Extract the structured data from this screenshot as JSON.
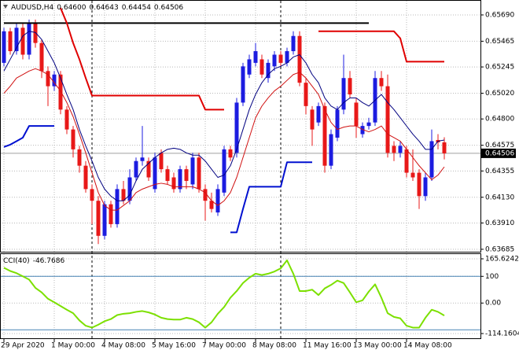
{
  "chart_data": {
    "type": "candlestick",
    "symbol": "AUDUSD,H4",
    "header_values": [
      "0.64600",
      "0.64643",
      "0.64454",
      "0.64506"
    ],
    "categories": [
      "29 Apr 2020",
      null,
      null,
      null,
      null,
      null,
      null,
      null,
      "1 May 00:00",
      null,
      null,
      null,
      null,
      null,
      null,
      null,
      "4 May 08:00",
      null,
      null,
      null,
      null,
      null,
      null,
      null,
      "5 May 16:00",
      null,
      null,
      null,
      null,
      null,
      null,
      null,
      "7 May 00:00",
      null,
      null,
      null,
      null,
      null,
      null,
      null,
      "8 May 08:00",
      null,
      null,
      null,
      null,
      null,
      null,
      null,
      "11 May 16:00",
      null,
      null,
      null,
      null,
      null,
      null,
      null,
      "13 May 00:00",
      null,
      null,
      null,
      null,
      null,
      null,
      null,
      "14 May 08:00",
      null,
      null,
      null,
      null,
      null,
      null
    ],
    "open": [
      0.6528,
      0.6555,
      0.6538,
      0.6558,
      0.6535,
      0.6562,
      0.6545,
      0.6521,
      0.6508,
      0.6518,
      0.6488,
      0.6471,
      0.6454,
      0.644,
      0.642,
      0.641,
      0.638,
      0.6407,
      0.639,
      0.642,
      0.641,
      0.643,
      0.6444,
      0.6444,
      0.642,
      0.6451,
      0.6437,
      0.643,
      0.642,
      0.6437,
      0.6424,
      0.6447,
      0.642,
      0.641,
      0.64,
      0.6417,
      0.6454,
      0.6451,
      0.6494,
      0.6518,
      0.6528,
      0.6531,
      0.6515,
      0.6525,
      0.6535,
      0.6528,
      0.6538,
      0.6551,
      0.6511,
      0.6488,
      0.6477,
      0.6491,
      0.644,
      0.6464,
      0.6488,
      0.6515,
      0.6494,
      0.6467,
      0.6474,
      0.6477,
      0.6515,
      0.6508,
      0.6457,
      0.6451,
      0.6454,
      0.6434,
      0.6434,
      0.6414,
      0.643,
      0.6462,
      0.646
    ],
    "high": [
      0.6558,
      0.6558,
      0.6562,
      0.6562,
      0.6565,
      0.6565,
      0.6548,
      0.6525,
      0.6521,
      0.6521,
      0.6491,
      0.6474,
      0.6457,
      0.6444,
      0.6424,
      0.6414,
      0.641,
      0.641,
      0.6424,
      0.6427,
      0.6437,
      0.6447,
      0.6474,
      0.6447,
      0.6451,
      0.6454,
      0.644,
      0.6434,
      0.644,
      0.644,
      0.6451,
      0.6451,
      0.6424,
      0.6417,
      0.6424,
      0.6457,
      0.6457,
      0.6498,
      0.6528,
      0.6535,
      0.6545,
      0.6535,
      0.6531,
      0.6538,
      0.6538,
      0.6541,
      0.6555,
      0.6555,
      0.6515,
      0.6491,
      0.6494,
      0.6494,
      0.6471,
      0.6491,
      0.6535,
      0.6521,
      0.6498,
      0.6477,
      0.6481,
      0.6521,
      0.6521,
      0.6518,
      0.6461,
      0.6461,
      0.6457,
      0.6454,
      0.6437,
      0.6434,
      0.6471,
      0.6467,
      0.64643
    ],
    "low": [
      0.6525,
      0.6535,
      0.6535,
      0.6531,
      0.6531,
      0.6541,
      0.6515,
      0.6491,
      0.6504,
      0.6484,
      0.6467,
      0.6447,
      0.6434,
      0.6417,
      0.639,
      0.6373,
      0.6377,
      0.6387,
      0.6387,
      0.6407,
      0.6407,
      0.6427,
      0.644,
      0.6427,
      0.6417,
      0.6434,
      0.6424,
      0.6417,
      0.6417,
      0.642,
      0.642,
      0.6417,
      0.6393,
      0.64,
      0.6397,
      0.6414,
      0.6444,
      0.6447,
      0.6491,
      0.6515,
      0.6525,
      0.6515,
      0.6511,
      0.6521,
      0.6525,
      0.6525,
      0.6535,
      0.6508,
      0.6484,
      0.6457,
      0.6474,
      0.6434,
      0.6437,
      0.6461,
      0.6484,
      0.6498,
      0.6464,
      0.6464,
      0.6471,
      0.6474,
      0.6504,
      0.6447,
      0.6444,
      0.6447,
      0.643,
      0.6427,
      0.6403,
      0.641,
      0.6427,
      0.6454,
      0.64454
    ],
    "close": [
      0.6555,
      0.6538,
      0.6558,
      0.6535,
      0.6562,
      0.6545,
      0.6521,
      0.6508,
      0.6518,
      0.6488,
      0.6471,
      0.6454,
      0.644,
      0.642,
      0.641,
      0.638,
      0.6407,
      0.639,
      0.642,
      0.641,
      0.643,
      0.6444,
      0.6447,
      0.643,
      0.6447,
      0.6437,
      0.6427,
      0.642,
      0.6437,
      0.6427,
      0.6447,
      0.642,
      0.641,
      0.6403,
      0.642,
      0.6454,
      0.6447,
      0.6494,
      0.6525,
      0.6531,
      0.6538,
      0.6518,
      0.6528,
      0.6535,
      0.6528,
      0.6538,
      0.6551,
      0.6511,
      0.6491,
      0.6471,
      0.6491,
      0.644,
      0.6467,
      0.6488,
      0.6515,
      0.6501,
      0.6474,
      0.6474,
      0.6477,
      0.6515,
      0.6508,
      0.6451,
      0.6451,
      0.6457,
      0.6434,
      0.643,
      0.6414,
      0.643,
      0.6461,
      0.646,
      0.64506
    ],
    "up_color": "#1c1ce0",
    "down_color": "#e81818",
    "series": [
      {
        "color": "#000080",
        "width": 1,
        "values": [
          0.6521,
          0.6531,
          0.6541,
          0.6551,
          0.6555,
          0.6554,
          0.6548,
          0.6538,
          0.6528,
          0.6515,
          0.6501,
          0.6488,
          0.6471,
          0.6457,
          0.6444,
          0.643,
          0.642,
          0.6414,
          0.641,
          0.641,
          0.6415,
          0.6427,
          0.6437,
          0.6442,
          0.6447,
          0.6451,
          0.6454,
          0.6455,
          0.6454,
          0.6451,
          0.6449,
          0.6449,
          0.6444,
          0.6437,
          0.643,
          0.6432,
          0.644,
          0.6454,
          0.6471,
          0.6488,
          0.6501,
          0.6511,
          0.6518,
          0.6523,
          0.6525,
          0.6528,
          0.6533,
          0.6535,
          0.6528,
          0.6518,
          0.6511,
          0.6498,
          0.6491,
          0.6488,
          0.6494,
          0.6498,
          0.6498,
          0.6494,
          0.6491,
          0.6496,
          0.6501,
          0.6494,
          0.6488,
          0.6481,
          0.6474,
          0.6467,
          0.6461,
          0.6454,
          0.6454,
          0.6461,
          0.6462
        ]
      },
      {
        "color": "#d01010",
        "width": 1,
        "values": [
          0.6502,
          0.6508,
          0.6515,
          0.6518,
          0.6521,
          0.6523,
          0.6521,
          0.6518,
          0.6511,
          0.6504,
          0.6494,
          0.6482,
          0.6467,
          0.6451,
          0.6434,
          0.6417,
          0.6406,
          0.6402,
          0.6402,
          0.6406,
          0.641,
          0.6417,
          0.642,
          0.6422,
          0.6424,
          0.6425,
          0.6424,
          0.6422,
          0.6422,
          0.6422,
          0.6422,
          0.642,
          0.6417,
          0.641,
          0.6406,
          0.641,
          0.6417,
          0.643,
          0.6447,
          0.6464,
          0.6481,
          0.6491,
          0.6498,
          0.6504,
          0.6508,
          0.6513,
          0.6518,
          0.652,
          0.6515,
          0.6508,
          0.6501,
          0.6488,
          0.6477,
          0.6471,
          0.6473,
          0.6474,
          0.6474,
          0.6471,
          0.6469,
          0.6471,
          0.6474,
          0.6467,
          0.6464,
          0.6461,
          0.6454,
          0.6447,
          0.644,
          0.6434,
          0.6428,
          0.6432,
          0.6439
        ]
      },
      {
        "color": "#000000",
        "width": 2,
        "values": [
          0.6562,
          0.6562,
          0.6562,
          0.6562,
          0.6562,
          0.6562,
          0.6562,
          0.6562,
          0.6562,
          0.6562,
          0.6562,
          0.6562,
          0.6562,
          0.6562,
          0.6562,
          0.6562,
          0.6562,
          0.6562,
          0.6562,
          0.6562,
          0.6562,
          0.6562,
          0.6562,
          0.6562,
          0.6562,
          0.6562,
          0.6562,
          0.6562,
          0.6562,
          0.6562,
          0.6562,
          0.6562,
          0.6562,
          0.6562,
          0.6562,
          0.6562,
          0.6562,
          0.6562,
          0.6562,
          0.6562,
          0.6562,
          0.6562,
          0.6562,
          0.6562,
          0.6562,
          0.6562,
          0.6562,
          0.6562,
          0.6562,
          0.6562,
          0.6562,
          0.6562,
          0.6562,
          0.6562,
          0.6562,
          0.6562,
          0.6562,
          0.6562,
          0.6562,
          null,
          null,
          null,
          null,
          null,
          null,
          null,
          null,
          null,
          null,
          null,
          null
        ]
      },
      {
        "color": "#e00000",
        "width": 2,
        "values": [
          null,
          null,
          null,
          null,
          null,
          null,
          null,
          null,
          null,
          0.6575,
          0.6562,
          0.6545,
          0.6531,
          0.6515,
          0.65,
          0.65,
          0.65,
          0.65,
          0.65,
          0.65,
          0.65,
          0.65,
          0.65,
          0.65,
          0.65,
          0.65,
          0.65,
          0.65,
          0.65,
          0.65,
          0.65,
          0.65,
          0.6488,
          0.6488,
          0.6488,
          0.6488,
          null,
          null,
          null,
          null,
          null,
          null,
          null,
          null,
          null,
          null,
          null,
          null,
          null,
          null,
          0.6555,
          0.6555,
          0.6555,
          0.6555,
          0.6555,
          0.6555,
          0.6555,
          0.6555,
          0.6555,
          0.6555,
          0.6555,
          0.6555,
          0.6555,
          0.6549,
          0.6529,
          0.6529,
          0.6529,
          0.6529,
          0.6529,
          0.6529,
          0.6529
        ]
      },
      {
        "color": "#0010d0",
        "width": 2,
        "values": [
          0.6456,
          0.6458,
          0.6461,
          0.6464,
          0.6474,
          0.6474,
          0.6474,
          0.6474,
          0.6474,
          null,
          null,
          null,
          null,
          null,
          null,
          null,
          null,
          null,
          null,
          null,
          null,
          null,
          null,
          null,
          null,
          null,
          null,
          null,
          null,
          null,
          null,
          null,
          null,
          null,
          null,
          null,
          0.6383,
          0.6383,
          0.6403,
          0.6422,
          0.6422,
          0.6422,
          0.6422,
          0.6422,
          0.6422,
          0.6443,
          0.6443,
          0.6443,
          0.6443,
          0.6443,
          null,
          null,
          null,
          null,
          null,
          null,
          null,
          null,
          null,
          null,
          null,
          null,
          null,
          null,
          null,
          null,
          null,
          null,
          null,
          null,
          null
        ]
      }
    ],
    "ylim": [
      0.63664,
      0.65811
    ],
    "yticks": [
      {
        "value": 0.6569,
        "label": "0.65690"
      },
      0.65465,
      0.65245,
      {
        "value": 0.6502,
        "label": "0.65020"
      },
      {
        "value": 0.648,
        "label": "0.64800"
      },
      0.64575,
      0.64355,
      {
        "value": 0.6413,
        "label": "0.64130"
      },
      {
        "value": 0.6391,
        "label": "0.63910"
      },
      0.63685
    ],
    "grid": true,
    "indicator": {
      "type": "line",
      "name": "CCI(40)",
      "color": "#7ce000",
      "values": [
        132,
        120,
        112,
        100,
        88,
        57,
        40,
        16,
        3,
        -11,
        -25,
        -38,
        -65,
        -85,
        -92,
        -81,
        -68,
        -60,
        -45,
        -40,
        -38,
        -33,
        -30,
        -35,
        -43,
        -55,
        -60,
        -62,
        -62,
        -55,
        -60,
        -72,
        -92,
        -72,
        -40,
        -15,
        20,
        45,
        75,
        95,
        110,
        105,
        110,
        118,
        130,
        160,
        110,
        45,
        45,
        50,
        30,
        55,
        68,
        84,
        75,
        40,
        3,
        10,
        43,
        70,
        20,
        -38,
        -52,
        -57,
        -85,
        -92,
        -92,
        -55,
        -25,
        -33,
        -46.7686
      ],
      "ylim": [
        -114.1604,
        165.6242
      ],
      "yticks": [
        165.6242,
        100,
        {
          "value": 0,
          "label": "0.00"
        },
        -114.1604
      ],
      "levels": [
        100,
        -100
      ],
      "level_color": "#4682b4"
    }
  }
}
